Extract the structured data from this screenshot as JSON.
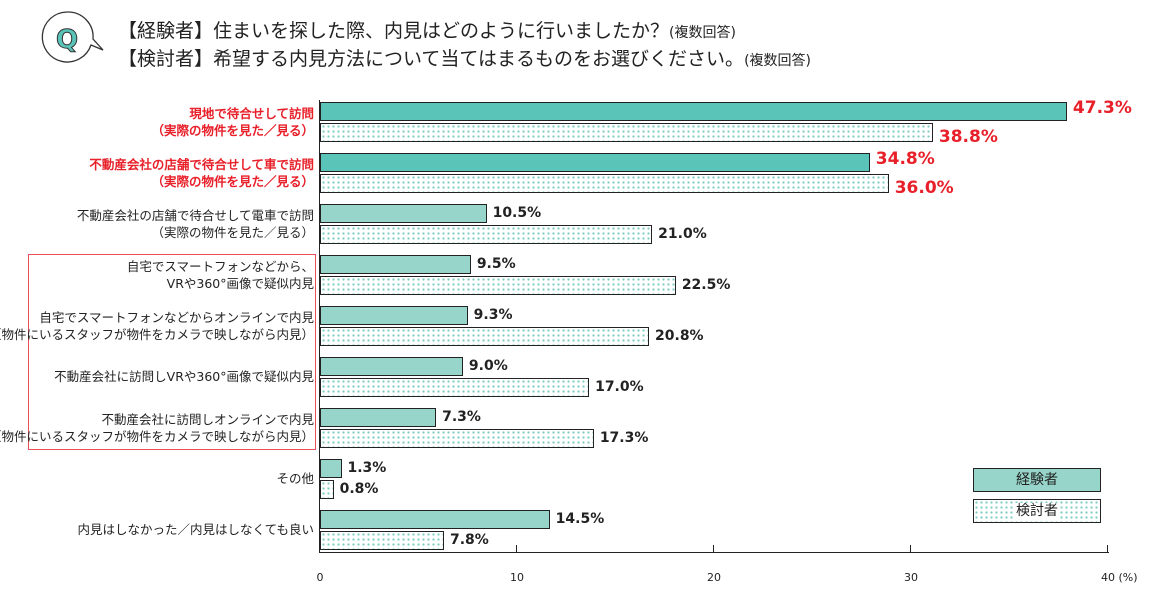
{
  "header": {
    "q_badge": "Q",
    "line1": "【経験者】住まいを探した際、内見はどのように行いましたか？",
    "line1_note": "(複数回答)",
    "line2": "【検討者】希望する内見方法について当てはまるものをお選びください。",
    "line2_note": "(複数回答)"
  },
  "chart_data": {
    "type": "bar",
    "orientation": "horizontal",
    "categories": [
      "現地で待合せして訪問\n（実際の物件を見た／見る）",
      "不動産会社の店舗で待合せして車で訪問\n（実際の物件を見た／見る）",
      "不動産会社の店舗で待合せして電車で訪問\n（実際の物件を見た／見る）",
      "自宅でスマートフォンなどから、\nVRや360°画像で疑似内見",
      "自宅でスマートフォンなどからオンラインで内見\n（物件にいるスタッフが物件をカメラで映しながら内見）",
      "不動産会社に訪問しVRや360°画像で疑似内見",
      "不動産会社に訪問しオンラインで内見\n（物件にいるスタッフが物件をカメラで映しながら内見）",
      "その他",
      "内見はしなかった／内見はしなくても良い"
    ],
    "highlighted_categories": [
      0,
      1
    ],
    "boxed_categories": [
      3,
      4,
      5,
      6
    ],
    "series": [
      {
        "name": "経験者",
        "values": [
          47.3,
          34.8,
          10.5,
          9.5,
          9.3,
          9.0,
          7.3,
          1.3,
          14.5
        ],
        "color": "#97d5cb",
        "highlight_color": "#5bc4b8",
        "pattern": "solid"
      },
      {
        "name": "検討者",
        "values": [
          38.8,
          36.0,
          21.0,
          22.5,
          20.8,
          17.0,
          17.3,
          0.8,
          7.8
        ],
        "color": "#7dcdc2",
        "pattern": "dotted"
      }
    ],
    "value_labels": [
      [
        "47.3%",
        "34.8%",
        "10.5%",
        "9.5%",
        "9.3%",
        "9.0%",
        "7.3%",
        "1.3%",
        "14.5%"
      ],
      [
        "38.8%",
        "36.0%",
        "21.0%",
        "22.5%",
        "20.8%",
        "17.0%",
        "17.3%",
        "0.8%",
        "7.8%"
      ]
    ],
    "x_ticks": [
      "0",
      "10",
      "20",
      "30",
      "40"
    ],
    "x_unit": "(%)",
    "highlight_text_color": "#e8202a",
    "legend_placement": "bottom-right",
    "grid": false
  }
}
